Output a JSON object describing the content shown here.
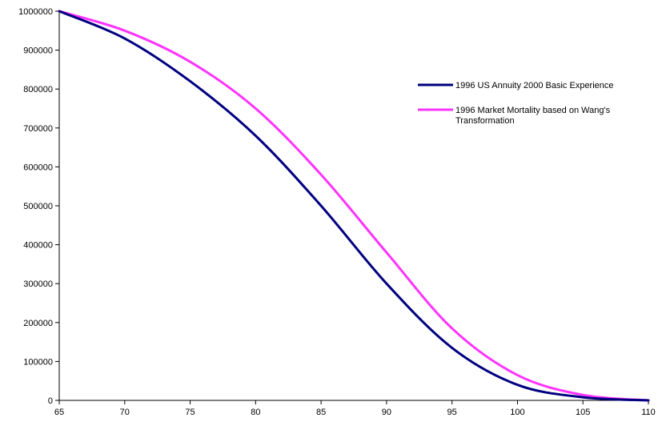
{
  "chart_data": {
    "type": "line",
    "title": "",
    "xlabel": "",
    "ylabel": "",
    "xlim": [
      65,
      110
    ],
    "ylim": [
      0,
      1000000
    ],
    "x_ticks": [
      "65",
      "70",
      "75",
      "80",
      "85",
      "90",
      "95",
      "100",
      "105",
      "110"
    ],
    "y_ticks": [
      "0",
      "100000",
      "200000",
      "300000",
      "400000",
      "500000",
      "600000",
      "700000",
      "800000",
      "900000",
      "1000000"
    ],
    "grid": false,
    "legend_position": "right",
    "x": [
      65,
      70,
      75,
      80,
      85,
      90,
      95,
      100,
      105,
      110
    ],
    "series": [
      {
        "name": "1996 US Annuity 2000 Basic  Experience",
        "color": "#000080",
        "values": [
          1000000,
          930000,
          820000,
          680000,
          500000,
          300000,
          135000,
          40000,
          8000,
          0
        ]
      },
      {
        "name": "1996 Market Mortality based on Wang's Transformation",
        "name_lines": [
          "1996 Market Mortality based on Wang's",
          "Transformation"
        ],
        "color": "#FF33FF",
        "values": [
          1000000,
          950000,
          870000,
          750000,
          580000,
          380000,
          185000,
          65000,
          14000,
          0
        ]
      }
    ]
  }
}
